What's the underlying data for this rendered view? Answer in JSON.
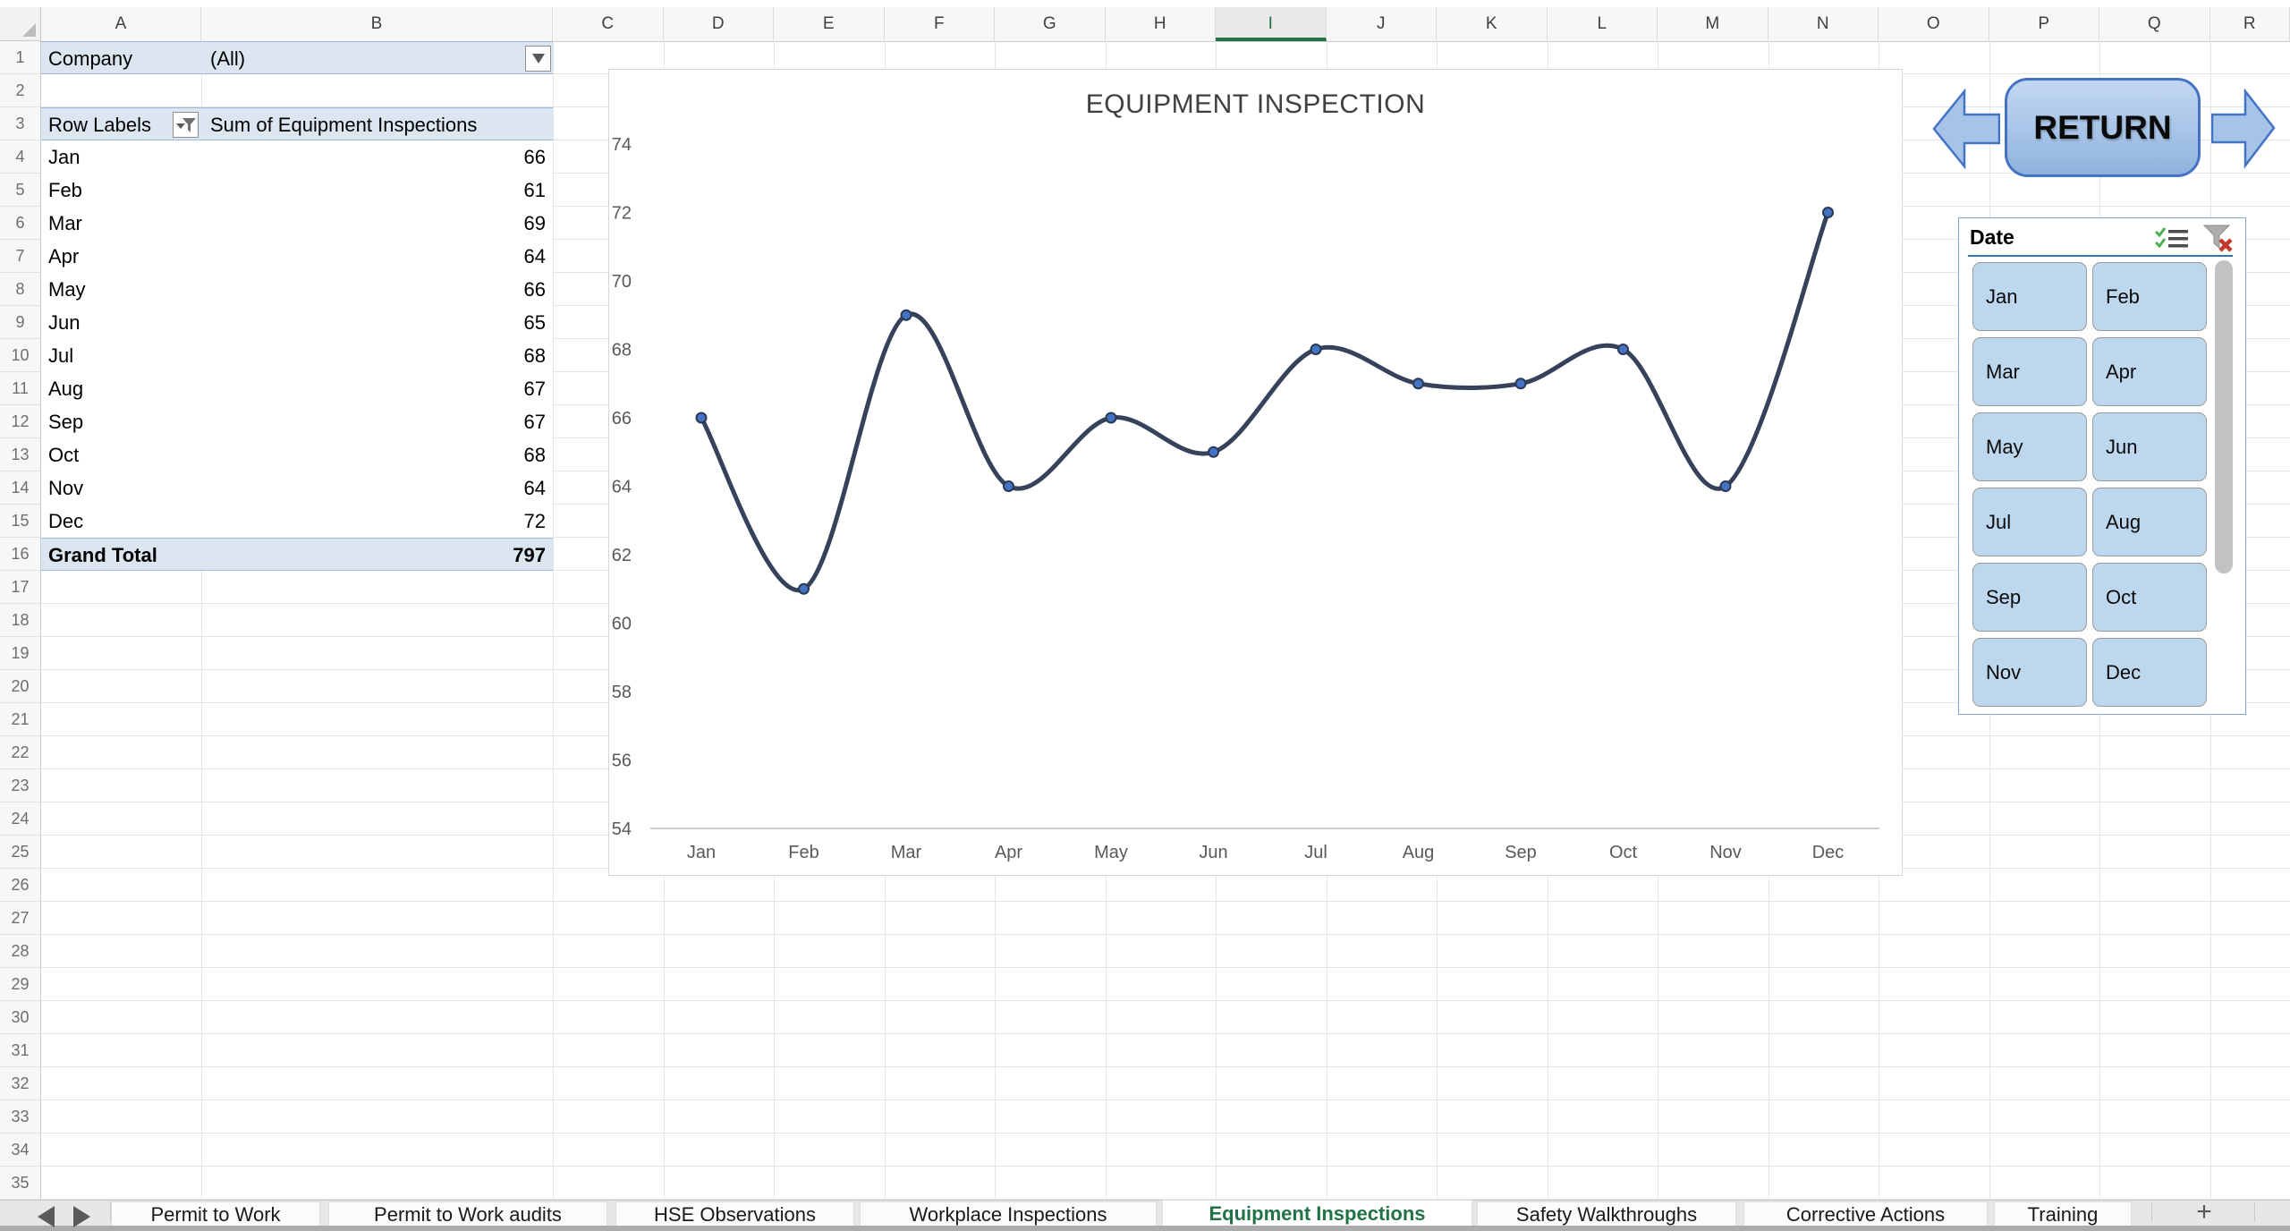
{
  "window": {
    "column_headers": [
      "A",
      "B",
      "C",
      "D",
      "E",
      "F",
      "G",
      "H",
      "I",
      "J",
      "K",
      "L",
      "M",
      "N",
      "O",
      "P",
      "Q",
      "R"
    ],
    "selected_column": "I",
    "row_count": 35
  },
  "pivot_table": {
    "filter_field": "Company",
    "filter_value": "(All)",
    "row_labels_header": "Row Labels",
    "values_header": "Sum of Equipment Inspections",
    "rows": [
      {
        "label": "Jan",
        "value": "66"
      },
      {
        "label": "Feb",
        "value": "61"
      },
      {
        "label": "Mar",
        "value": "69"
      },
      {
        "label": "Apr",
        "value": "64"
      },
      {
        "label": "May",
        "value": "66"
      },
      {
        "label": "Jun",
        "value": "65"
      },
      {
        "label": "Jul",
        "value": "68"
      },
      {
        "label": "Aug",
        "value": "67"
      },
      {
        "label": "Sep",
        "value": "67"
      },
      {
        "label": "Oct",
        "value": "68"
      },
      {
        "label": "Nov",
        "value": "64"
      },
      {
        "label": "Dec",
        "value": "72"
      }
    ],
    "grand_total_label": "Grand Total",
    "grand_total_value": "797"
  },
  "chart_data": {
    "type": "line",
    "title": "EQUIPMENT INSPECTION",
    "categories": [
      "Jan",
      "Feb",
      "Mar",
      "Apr",
      "May",
      "Jun",
      "Jul",
      "Aug",
      "Sep",
      "Oct",
      "Nov",
      "Dec"
    ],
    "series": [
      {
        "name": "Sum of Equipment Inspections",
        "values": [
          66,
          61,
          69,
          64,
          66,
          65,
          68,
          67,
          67,
          68,
          64,
          72
        ]
      }
    ],
    "ylim": [
      54,
      74
    ],
    "ytick_step": 2,
    "xlabel": "",
    "ylabel": "",
    "grid": false,
    "legend_position": "none",
    "smooth": true,
    "line_color": "#35425A",
    "marker_color": "#4472C4",
    "marker_ring_color": "#2B3A52",
    "axis_color": "#BFBFBF",
    "tick_color": "#595959"
  },
  "return_control": {
    "label": "RETURN",
    "left_icon": "block-arrow-left-icon",
    "right_icon": "block-arrow-right-icon"
  },
  "slicer": {
    "title": "Date",
    "items": [
      "Jan",
      "Feb",
      "Mar",
      "Apr",
      "May",
      "Jun",
      "Jul",
      "Aug",
      "Sep",
      "Oct",
      "Nov",
      "Dec"
    ],
    "multi_select_icon": "multi-select-icon",
    "clear_filter_icon": "clear-filter-icon"
  },
  "sheet_tabs": {
    "tabs": [
      "Permit to Work",
      "Permit to Work audits",
      "HSE Observations",
      "Workplace Inspections",
      "Equipment Inspections",
      "Safety Walkthroughs",
      "Corrective Actions",
      "Training"
    ],
    "active_tab": "Equipment Inspections",
    "add_sheet_label": "+"
  },
  "colors": {
    "accent_green": "#217346",
    "pivot_fill": "#DCE6F1",
    "slicer_button_fill": "#BDD7EE",
    "return_border": "#4472C4"
  }
}
